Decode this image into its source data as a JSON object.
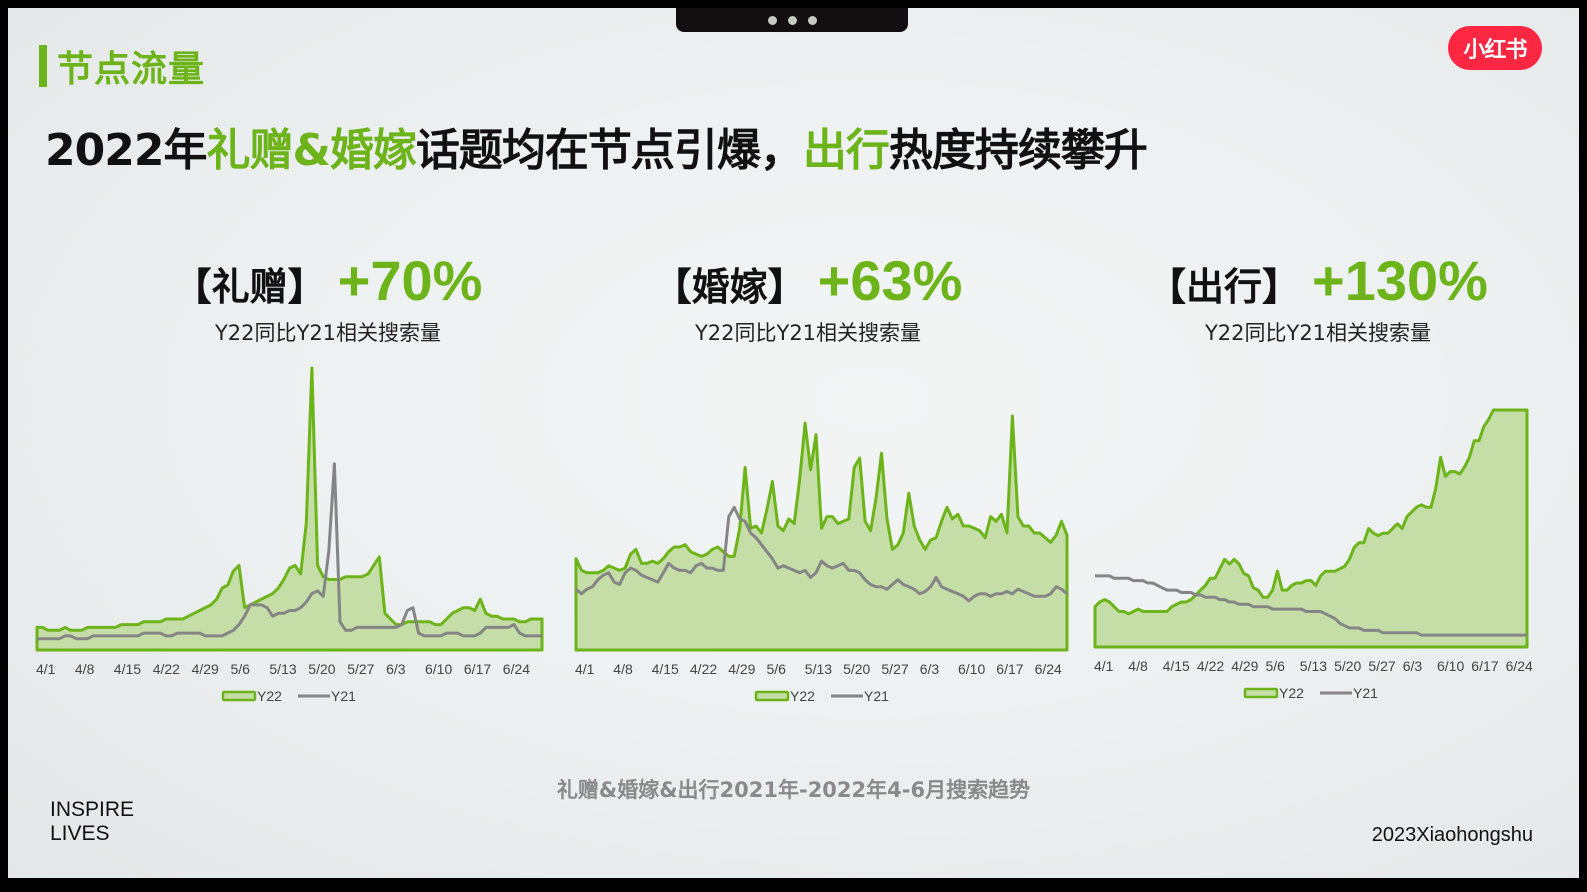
{
  "header": {
    "section_label": "节点流量",
    "logo_text": "小红书",
    "headline": [
      {
        "text": "2022年",
        "accent": false
      },
      {
        "text": "礼赠&婚嫁",
        "accent": true
      },
      {
        "text": "话题均在节点引爆，",
        "accent": false
      },
      {
        "text": "出行",
        "accent": true
      },
      {
        "text": "热度持续攀升",
        "accent": false
      }
    ]
  },
  "colors": {
    "accent": "#6db31a",
    "fill": "#c5dea8",
    "y21": "#858585",
    "logo": "#ff2741"
  },
  "kpis": [
    {
      "category": "【礼赠】",
      "change": "+70%",
      "subtitle": "Y22同比Y21相关搜索量"
    },
    {
      "category": "【婚嫁】",
      "change": "+63%",
      "subtitle": "Y22同比Y21相关搜索量"
    },
    {
      "category": "【出行】",
      "change": "+130%",
      "subtitle": "Y22同比Y21相关搜索量"
    }
  ],
  "chart_data": [
    {
      "type": "area",
      "title": "【礼赠】 +70%",
      "subtitle": "Y22同比Y21相关搜索量",
      "xlabel": "",
      "ylabel": "",
      "x_ticks": [
        "4/1",
        "4/8",
        "4/15",
        "4/22",
        "4/29",
        "5/6",
        "5/13",
        "5/20",
        "5/27",
        "6/3",
        "6/10",
        "6/17",
        "6/24"
      ],
      "ylim": [
        0,
        100
      ],
      "grid": false,
      "legend": [
        "Y22",
        "Y21"
      ],
      "legend_position": "bottom",
      "series": [
        {
          "name": "Y22",
          "style": "area",
          "values": [
            8,
            8,
            7,
            7,
            7,
            8,
            7,
            7,
            7,
            8,
            8,
            8,
            8,
            8,
            8,
            9,
            9,
            9,
            9,
            10,
            10,
            10,
            10,
            11,
            11,
            11,
            11,
            12,
            13,
            14,
            15,
            16,
            18,
            22,
            23,
            28,
            30,
            15,
            16,
            17,
            18,
            19,
            20,
            22,
            25,
            29,
            30,
            27,
            45,
            100,
            30,
            26,
            25,
            25,
            25,
            26,
            26,
            26,
            26,
            27,
            30,
            33,
            13,
            11,
            9,
            9,
            10,
            10,
            10,
            10,
            10,
            9,
            9,
            11,
            13,
            14,
            15,
            15,
            14,
            18,
            13,
            12,
            12,
            11,
            11,
            11,
            10,
            10,
            11,
            11,
            11
          ]
        },
        {
          "name": "Y21",
          "style": "line",
          "values": [
            4,
            4,
            4,
            4,
            4,
            5,
            5,
            4,
            4,
            4,
            5,
            5,
            5,
            5,
            5,
            5,
            5,
            5,
            5,
            6,
            6,
            6,
            6,
            5,
            5,
            6,
            6,
            6,
            6,
            6,
            5,
            5,
            5,
            5,
            6,
            7,
            9,
            12,
            16,
            16,
            16,
            15,
            12,
            13,
            13,
            14,
            14,
            15,
            17,
            20,
            21,
            19,
            35,
            66,
            10,
            7,
            7,
            8,
            8,
            8,
            8,
            8,
            8,
            8,
            8,
            9,
            14,
            15,
            6,
            5,
            5,
            5,
            5,
            6,
            6,
            6,
            5,
            5,
            5,
            6,
            8,
            8,
            8,
            8,
            8,
            9,
            6,
            5,
            5,
            5,
            5
          ]
        }
      ]
    },
    {
      "type": "area",
      "title": "【婚嫁】 +63%",
      "subtitle": "Y22同比Y21相关搜索量",
      "xlabel": "",
      "ylabel": "",
      "x_ticks": [
        "4/1",
        "4/8",
        "4/15",
        "4/22",
        "4/29",
        "5/6",
        "5/13",
        "5/20",
        "5/27",
        "6/3",
        "6/10",
        "6/17",
        "6/24"
      ],
      "ylim": [
        0,
        100
      ],
      "grid": false,
      "legend": [
        "Y22",
        "Y21"
      ],
      "legend_position": "bottom",
      "series": [
        {
          "name": "Y22",
          "style": "area",
          "values": [
            39,
            34,
            33,
            33,
            33,
            34,
            36,
            35,
            34,
            35,
            41,
            43,
            37,
            37,
            38,
            37,
            39,
            42,
            44,
            44,
            45,
            42,
            41,
            40,
            41,
            43,
            44,
            42,
            40,
            40,
            52,
            78,
            52,
            53,
            50,
            60,
            72,
            53,
            51,
            56,
            54,
            73,
            97,
            77,
            92,
            52,
            57,
            57,
            54,
            55,
            56,
            78,
            82,
            55,
            51,
            65,
            84,
            56,
            43,
            45,
            50,
            67,
            53,
            47,
            43,
            47,
            48,
            55,
            61,
            56,
            58,
            53,
            53,
            52,
            51,
            48,
            57,
            55,
            58,
            50,
            100,
            57,
            53,
            53,
            50,
            50,
            48,
            46,
            49,
            55,
            49
          ]
        },
        {
          "name": "Y21",
          "style": "line",
          "values": [
            26,
            24,
            26,
            27,
            30,
            32,
            33,
            29,
            28,
            33,
            35,
            34,
            32,
            31,
            30,
            29,
            33,
            37,
            35,
            34,
            34,
            33,
            36,
            37,
            35,
            35,
            34,
            34,
            57,
            61,
            56,
            55,
            50,
            48,
            45,
            42,
            39,
            35,
            36,
            35,
            34,
            33,
            34,
            31,
            33,
            38,
            36,
            35,
            36,
            37,
            34,
            34,
            33,
            30,
            28,
            27,
            27,
            26,
            28,
            30,
            28,
            27,
            26,
            24,
            25,
            27,
            31,
            27,
            26,
            25,
            24,
            23,
            21,
            23,
            24,
            24,
            23,
            24,
            24,
            25,
            24,
            26,
            25,
            24,
            23,
            23,
            23,
            24,
            27,
            26,
            24
          ]
        }
      ]
    },
    {
      "type": "area",
      "title": "【出行】 +130%",
      "subtitle": "Y22同比Y21相关搜索量",
      "xlabel": "",
      "ylabel": "",
      "x_ticks": [
        "4/1",
        "4/8",
        "4/15",
        "4/22",
        "4/29",
        "5/6",
        "5/13",
        "5/20",
        "5/27",
        "6/3",
        "6/10",
        "6/17",
        "6/24"
      ],
      "ylim": [
        0,
        100
      ],
      "grid": false,
      "legend": [
        "Y22",
        "Y21"
      ],
      "legend_position": "bottom",
      "series": [
        {
          "name": "Y22",
          "style": "area",
          "values": [
            17,
            19,
            20,
            19,
            17,
            15,
            15,
            14,
            15,
            16,
            15,
            15,
            15,
            15,
            15,
            15,
            17,
            18,
            19,
            19,
            20,
            22,
            24,
            26,
            29,
            29,
            33,
            37,
            35,
            37,
            35,
            31,
            30,
            25,
            24,
            21,
            21,
            24,
            32,
            24,
            24,
            26,
            27,
            27,
            28,
            28,
            26,
            30,
            32,
            32,
            32,
            33,
            34,
            37,
            42,
            44,
            44,
            50,
            48,
            47,
            48,
            48,
            50,
            52,
            50,
            55,
            57,
            59,
            60,
            59,
            59,
            67,
            80,
            72,
            74,
            74,
            73,
            76,
            80,
            87,
            87,
            93,
            96,
            100,
            100,
            100,
            100,
            100,
            100,
            100,
            100
          ]
        },
        {
          "name": "Y21",
          "style": "line",
          "values": [
            30,
            30,
            30,
            30,
            29,
            29,
            29,
            29,
            28,
            28,
            28,
            27,
            27,
            26,
            25,
            24,
            24,
            24,
            23,
            23,
            23,
            22,
            22,
            21,
            21,
            21,
            20,
            20,
            19,
            19,
            18,
            18,
            18,
            17,
            17,
            17,
            17,
            16,
            16,
            16,
            16,
            16,
            16,
            16,
            15,
            15,
            15,
            15,
            14,
            13,
            12,
            10,
            9,
            8,
            8,
            8,
            7,
            7,
            7,
            7,
            6,
            6,
            6,
            6,
            6,
            6,
            6,
            6,
            5,
            5,
            5,
            5,
            5,
            5,
            5,
            5,
            5,
            5,
            5,
            5,
            5,
            5,
            5,
            5,
            5,
            5,
            5,
            5,
            5,
            5,
            5
          ]
        }
      ]
    }
  ],
  "footer": {
    "caption": "礼赠&婚嫁&出行2021年-2022年4-6月搜索趋势",
    "brand_line1": "INSPIRE",
    "brand_line2": "LIVES",
    "copyright": "2023Xiaohongshu"
  }
}
